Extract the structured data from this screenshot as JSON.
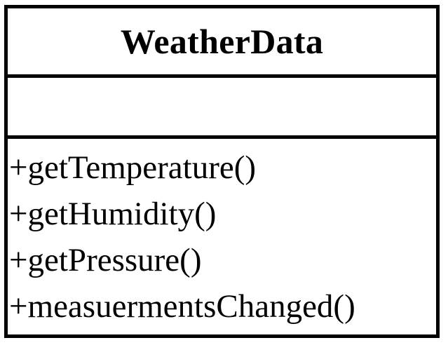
{
  "class": {
    "name": "WeatherData",
    "attributes": [],
    "operations": [
      "+getTemperature()",
      "+getHumidity()",
      "+getPressure()",
      "+measuermentsChanged()"
    ]
  }
}
